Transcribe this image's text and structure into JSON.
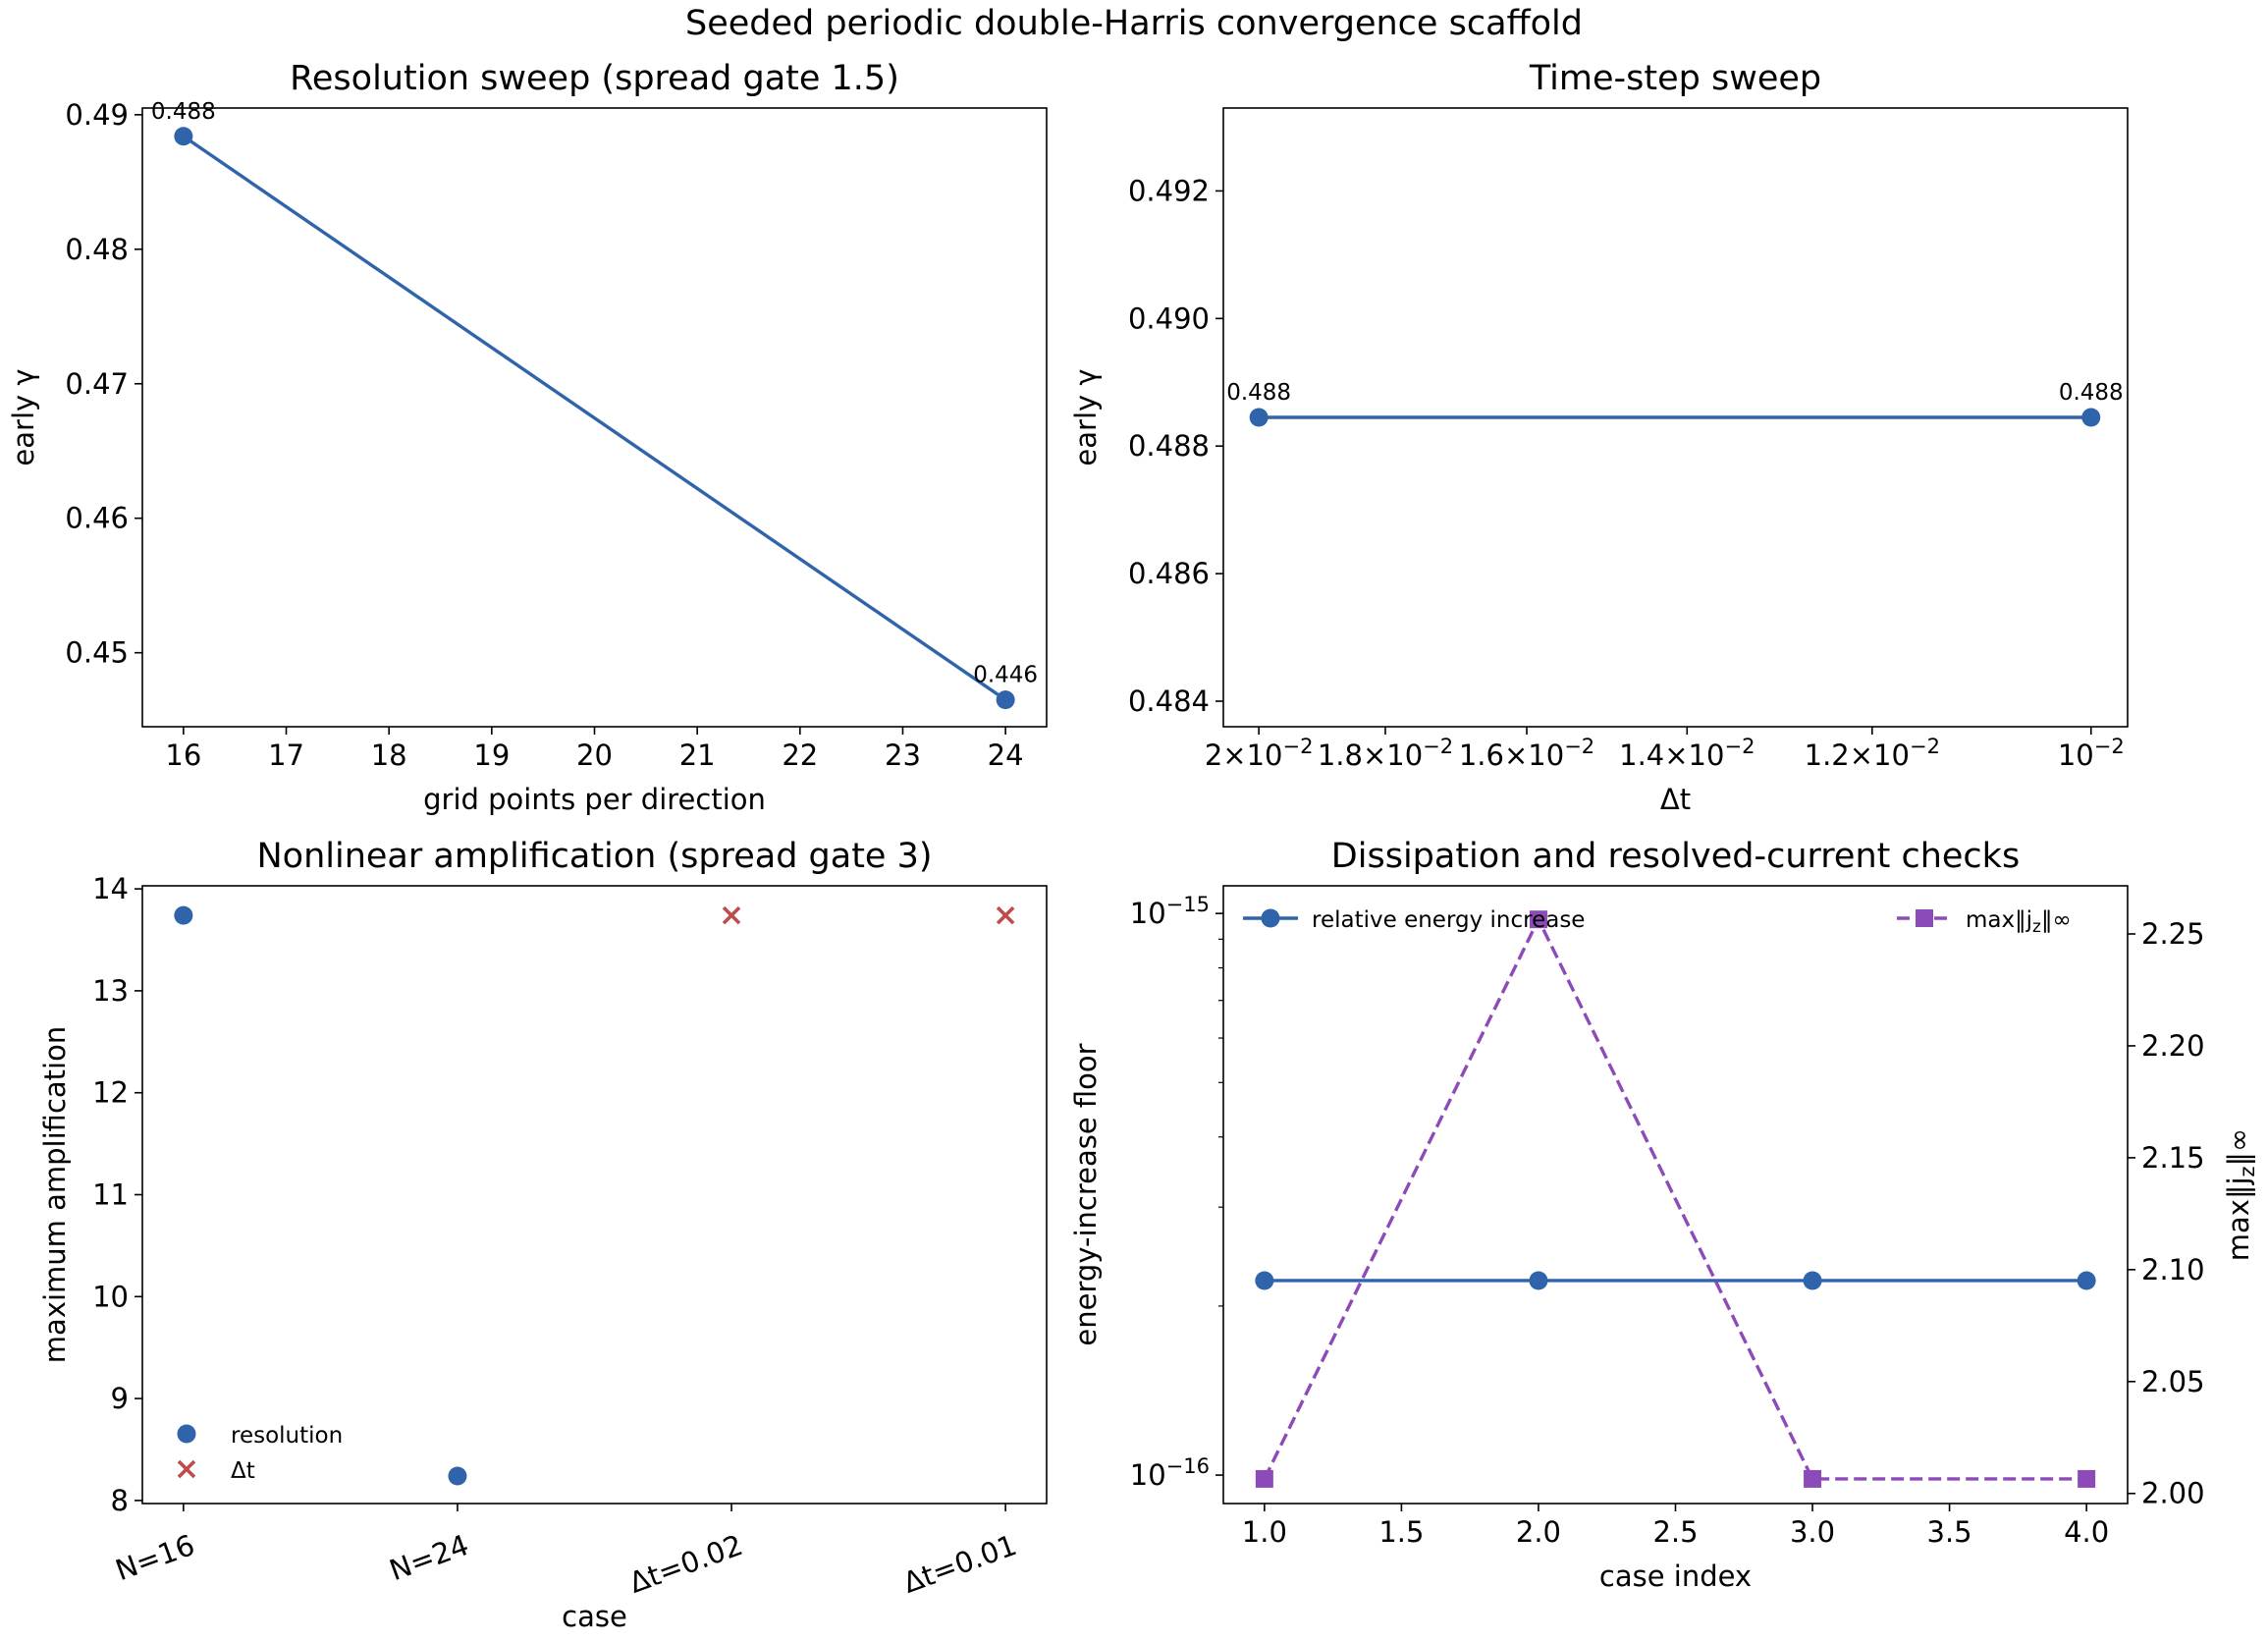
{
  "figure": {
    "title": "Seeded periodic double-Harris convergence scaffold"
  },
  "colors": {
    "blue": "#2f64ab",
    "red": "#bf4b4b",
    "purple": "#8c4bb8",
    "axis": "#000000"
  },
  "chart_data": [
    {
      "id": "resolution",
      "type": "line",
      "title": "Resolution sweep (spread gate 1.5)",
      "xlabel": "grid points per direction",
      "ylabel": "early γ",
      "xlim": [
        15.6,
        24.4
      ],
      "ylim": [
        0.4445,
        0.4905
      ],
      "xticks": [
        16,
        17,
        18,
        19,
        20,
        21,
        22,
        23,
        24
      ],
      "yticks": [
        0.45,
        0.46,
        0.47,
        0.48,
        0.49
      ],
      "ytick_labels": [
        "0.45",
        "0.46",
        "0.47",
        "0.48",
        "0.49"
      ],
      "series": [
        {
          "x": [
            16,
            24
          ],
          "y": [
            0.4884,
            0.4465
          ],
          "labels": [
            "0.488",
            "0.446"
          ],
          "color": "blue",
          "marker": "circle"
        }
      ],
      "grid": false
    },
    {
      "id": "timestep",
      "type": "line",
      "title": "Time-step sweep",
      "xlabel": "Δt",
      "ylabel": "early γ",
      "xscale": "log (reversed)",
      "xlim": [
        0.0206,
        0.0097
      ],
      "ylim": [
        0.4836,
        0.4933
      ],
      "xticks": [
        {
          "value": 0.02,
          "mant": "2",
          "exp": "−2"
        },
        {
          "value": 0.018,
          "mant": "1.8",
          "exp": "−2"
        },
        {
          "value": 0.016,
          "mant": "1.6",
          "exp": "−2"
        },
        {
          "value": 0.014,
          "mant": "1.4",
          "exp": "−2"
        },
        {
          "value": 0.012,
          "mant": "1.2",
          "exp": "−2"
        },
        {
          "value": 0.01,
          "mant": "",
          "exp": "−2"
        }
      ],
      "yticks": [
        0.484,
        0.486,
        0.488,
        0.49,
        0.492
      ],
      "ytick_labels": [
        "0.484",
        "0.486",
        "0.488",
        "0.490",
        "0.492"
      ],
      "series": [
        {
          "x": [
            0.02,
            0.01
          ],
          "y": [
            0.48845,
            0.48845
          ],
          "labels": [
            "0.488",
            "0.488"
          ],
          "color": "blue",
          "marker": "circle"
        }
      ],
      "grid": false
    },
    {
      "id": "amplification",
      "type": "scatter",
      "title": "Nonlinear amplification (spread gate 3)",
      "xlabel": "case",
      "ylabel": "maximum amplification",
      "categories": [
        "N=16",
        "N=24",
        "Δt=0.02",
        "Δt=0.01"
      ],
      "ylim": [
        7.97,
        14.03
      ],
      "yticks": [
        8,
        9,
        10,
        11,
        12,
        13,
        14
      ],
      "ytick_labels": [
        "8",
        "9",
        "10",
        "11",
        "12",
        "13",
        "14"
      ],
      "series": [
        {
          "name": "resolution",
          "marker": "circle",
          "color": "blue",
          "points": [
            {
              "cat": 0,
              "y": 13.74
            },
            {
              "cat": 1,
              "y": 8.24
            }
          ]
        },
        {
          "name": "Δt",
          "marker": "x",
          "color": "red",
          "points": [
            {
              "cat": 2,
              "y": 13.74
            },
            {
              "cat": 3,
              "y": 13.74
            }
          ]
        }
      ],
      "legend": "lower-left",
      "grid": false
    },
    {
      "id": "dissipation",
      "type": "line",
      "title": "Dissipation and resolved-current checks",
      "xlabel": "case index",
      "ylabel": "energy-increase floor",
      "y2label": "max‖j_z‖∞",
      "xlim": [
        0.85,
        4.15
      ],
      "xticks": [
        1.0,
        1.5,
        2.0,
        2.5,
        3.0,
        3.5,
        4.0
      ],
      "xtick_labels": [
        "1.0",
        "1.5",
        "2.0",
        "2.5",
        "3.0",
        "3.5",
        "4.0"
      ],
      "yscale": "log",
      "ylim": [
        8.9e-17,
        1.12e-15
      ],
      "yticks_major": [
        {
          "value": 1e-16,
          "exp": "−16"
        },
        {
          "value": 1e-15,
          "exp": "−15"
        }
      ],
      "y2lim": [
        1.9955,
        2.2715
      ],
      "y2ticks": [
        2.0,
        2.05,
        2.1,
        2.15,
        2.2,
        2.25
      ],
      "y2tick_labels": [
        "2.00",
        "2.05",
        "2.10",
        "2.15",
        "2.20",
        "2.25"
      ],
      "series": [
        {
          "name": "relative energy increase",
          "axis": "left",
          "x": [
            1,
            2,
            3,
            4
          ],
          "y": [
            2.22e-16,
            2.22e-16,
            2.22e-16,
            2.22e-16
          ],
          "color": "blue",
          "marker": "circle",
          "linestyle": "solid"
        },
        {
          "name": "max‖j_z‖∞",
          "axis": "right",
          "x": [
            1,
            2,
            3,
            4
          ],
          "y": [
            2.0065,
            2.2565,
            2.0065,
            2.0065
          ],
          "color": "purple",
          "marker": "square",
          "linestyle": "dashed"
        }
      ],
      "legend": [
        "upper-left",
        "upper-right"
      ],
      "grid": false
    }
  ]
}
